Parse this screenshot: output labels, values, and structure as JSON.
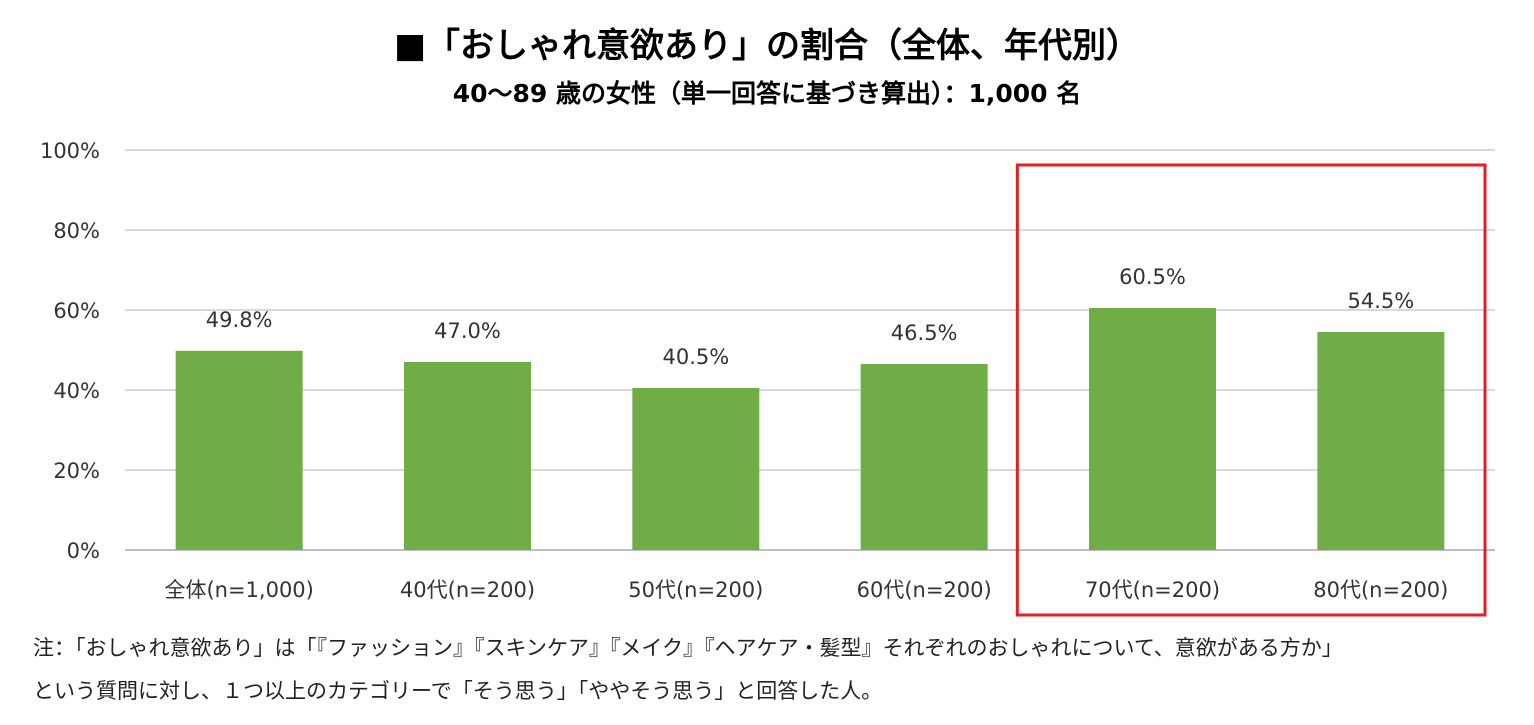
{
  "title": "■「おしゃれ意欲あり」の割合（全体、年代別）",
  "subtitle": "40～89 歳の女性（単一回答に基づき算出）：1,000 名",
  "notes": [
    "注：「おしゃれ意欲あり」は「『ファッション』『スキンケア』『メイク』『ヘアケア・髪型』それぞれのおしゃれについて、意欲がある方か」",
    "という質問に対し、１つ以上のカテゴリーで「そう思う」「ややそう思う」と回答した人。"
  ],
  "colors": {
    "bar": "#70AD47",
    "grid": "#D9D9D9",
    "highlight": "#E31E24"
  },
  "chart_data": {
    "type": "bar",
    "categories": [
      "全体(n=1,000)",
      "40代(n=200)",
      "50代(n=200)",
      "60代(n=200)",
      "70代(n=200)",
      "80代(n=200)"
    ],
    "values": [
      49.8,
      47.0,
      40.5,
      46.5,
      60.5,
      54.5
    ],
    "value_labels": [
      "49.8%",
      "47.0%",
      "40.5%",
      "46.5%",
      "60.5%",
      "54.5%"
    ],
    "y_ticks": [
      "0%",
      "20%",
      "40%",
      "60%",
      "80%",
      "100%"
    ],
    "ylim": [
      0,
      100
    ],
    "grid": true,
    "highlighted_categories": [
      "70代(n=200)",
      "80代(n=200)"
    ]
  }
}
